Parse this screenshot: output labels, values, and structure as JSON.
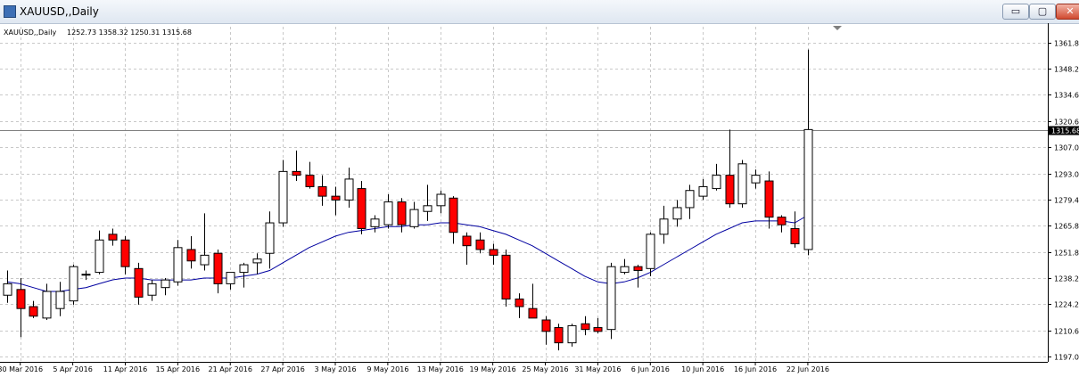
{
  "window": {
    "title": "XAUUSD,,Daily",
    "buttons": {
      "minimize": "▭",
      "maximize": "▢",
      "close": "✕"
    }
  },
  "chart_data": {
    "type": "candlestick",
    "symbol_label": "XAUUSD,,Daily",
    "ohlc_label": "1252.73 1358.32 1250.31 1315.68",
    "last_price": 1315.68,
    "ylim": [
      1194.0,
      1370.0
    ],
    "y_ticks": [
      1197.0,
      1210.6,
      1224.2,
      1238.2,
      1251.8,
      1265.8,
      1279.4,
      1293.0,
      1307.0,
      1320.6,
      1334.6,
      1348.2,
      1361.8
    ],
    "x_labels": [
      {
        "bar": 1,
        "text": "30 Mar 2016"
      },
      {
        "bar": 5,
        "text": "5 Apr 2016"
      },
      {
        "bar": 9,
        "text": "11 Apr 2016"
      },
      {
        "bar": 13,
        "text": "15 Apr 2016"
      },
      {
        "bar": 17,
        "text": "21 Apr 2016"
      },
      {
        "bar": 21,
        "text": "27 Apr 2016"
      },
      {
        "bar": 25,
        "text": "3 May 2016"
      },
      {
        "bar": 29,
        "text": "9 May 2016"
      },
      {
        "bar": 33,
        "text": "13 May 2016"
      },
      {
        "bar": 37,
        "text": "19 May 2016"
      },
      {
        "bar": 41,
        "text": "25 May 2016"
      },
      {
        "bar": 45,
        "text": "31 May 2016"
      },
      {
        "bar": 49,
        "text": "6 Jun 2016"
      },
      {
        "bar": 53,
        "text": "10 Jun 2016"
      },
      {
        "bar": 57,
        "text": "16 Jun 2016"
      },
      {
        "bar": 61,
        "text": "22 Jun 2016"
      }
    ],
    "bars": [
      {
        "o": 1229,
        "h": 1242,
        "l": 1225,
        "c": 1235
      },
      {
        "o": 1232,
        "h": 1238,
        "l": 1207,
        "c": 1222
      },
      {
        "o": 1223,
        "h": 1226,
        "l": 1217,
        "c": 1218
      },
      {
        "o": 1217,
        "h": 1235,
        "l": 1216,
        "c": 1231
      },
      {
        "o": 1222,
        "h": 1236,
        "l": 1218,
        "c": 1231
      },
      {
        "o": 1226,
        "h": 1245,
        "l": 1224,
        "c": 1244
      },
      {
        "o": 1240,
        "h": 1242,
        "l": 1237,
        "c": 1240
      },
      {
        "o": 1241,
        "h": 1263,
        "l": 1240,
        "c": 1258
      },
      {
        "o": 1261,
        "h": 1264,
        "l": 1255,
        "c": 1258
      },
      {
        "o": 1258,
        "h": 1260,
        "l": 1240,
        "c": 1244
      },
      {
        "o": 1243,
        "h": 1246,
        "l": 1224,
        "c": 1228
      },
      {
        "o": 1229,
        "h": 1237,
        "l": 1226,
        "c": 1235
      },
      {
        "o": 1233,
        "h": 1238,
        "l": 1229,
        "c": 1237
      },
      {
        "o": 1236,
        "h": 1258,
        "l": 1234,
        "c": 1254
      },
      {
        "o": 1253,
        "h": 1260,
        "l": 1243,
        "c": 1247
      },
      {
        "o": 1245,
        "h": 1272,
        "l": 1242,
        "c": 1250
      },
      {
        "o": 1251,
        "h": 1253,
        "l": 1230,
        "c": 1235
      },
      {
        "o": 1235,
        "h": 1240,
        "l": 1232,
        "c": 1241
      },
      {
        "o": 1241,
        "h": 1246,
        "l": 1233,
        "c": 1245
      },
      {
        "o": 1246,
        "h": 1251,
        "l": 1240,
        "c": 1248
      },
      {
        "o": 1251,
        "h": 1273,
        "l": 1243,
        "c": 1267
      },
      {
        "o": 1267,
        "h": 1300,
        "l": 1265,
        "c": 1294
      },
      {
        "o": 1294,
        "h": 1305,
        "l": 1289,
        "c": 1292
      },
      {
        "o": 1292,
        "h": 1299,
        "l": 1285,
        "c": 1286
      },
      {
        "o": 1286,
        "h": 1292,
        "l": 1276,
        "c": 1281
      },
      {
        "o": 1281,
        "h": 1286,
        "l": 1271,
        "c": 1279
      },
      {
        "o": 1279,
        "h": 1296,
        "l": 1275,
        "c": 1290
      },
      {
        "o": 1285,
        "h": 1289,
        "l": 1261,
        "c": 1264
      },
      {
        "o": 1265,
        "h": 1271,
        "l": 1262,
        "c": 1269
      },
      {
        "o": 1266,
        "h": 1282,
        "l": 1264,
        "c": 1278
      },
      {
        "o": 1278,
        "h": 1280,
        "l": 1262,
        "c": 1266
      },
      {
        "o": 1265,
        "h": 1278,
        "l": 1264,
        "c": 1274
      },
      {
        "o": 1273,
        "h": 1287,
        "l": 1268,
        "c": 1276
      },
      {
        "o": 1276,
        "h": 1284,
        "l": 1272,
        "c": 1282
      },
      {
        "o": 1280,
        "h": 1281,
        "l": 1256,
        "c": 1262
      },
      {
        "o": 1260,
        "h": 1262,
        "l": 1245,
        "c": 1255
      },
      {
        "o": 1258,
        "h": 1262,
        "l": 1251,
        "c": 1253
      },
      {
        "o": 1253,
        "h": 1256,
        "l": 1245,
        "c": 1250
      },
      {
        "o": 1250,
        "h": 1253,
        "l": 1223,
        "c": 1227
      },
      {
        "o": 1227,
        "h": 1230,
        "l": 1217,
        "c": 1223
      },
      {
        "o": 1222,
        "h": 1235,
        "l": 1217,
        "c": 1217
      },
      {
        "o": 1216,
        "h": 1218,
        "l": 1203,
        "c": 1210
      },
      {
        "o": 1212,
        "h": 1214,
        "l": 1200,
        "c": 1204
      },
      {
        "o": 1204,
        "h": 1214,
        "l": 1202,
        "c": 1213
      },
      {
        "o": 1214,
        "h": 1218,
        "l": 1208,
        "c": 1211
      },
      {
        "o": 1212,
        "h": 1217,
        "l": 1209,
        "c": 1210
      },
      {
        "o": 1211,
        "h": 1246,
        "l": 1206,
        "c": 1244
      },
      {
        "o": 1241,
        "h": 1248,
        "l": 1240,
        "c": 1244
      },
      {
        "o": 1244,
        "h": 1245,
        "l": 1233,
        "c": 1242
      },
      {
        "o": 1243,
        "h": 1262,
        "l": 1239,
        "c": 1261
      },
      {
        "o": 1261,
        "h": 1276,
        "l": 1256,
        "c": 1269
      },
      {
        "o": 1269,
        "h": 1279,
        "l": 1265,
        "c": 1275
      },
      {
        "o": 1275,
        "h": 1287,
        "l": 1269,
        "c": 1284
      },
      {
        "o": 1281,
        "h": 1290,
        "l": 1279,
        "c": 1286
      },
      {
        "o": 1285,
        "h": 1298,
        "l": 1284,
        "c": 1292
      },
      {
        "o": 1292,
        "h": 1316,
        "l": 1275,
        "c": 1277
      },
      {
        "o": 1277,
        "h": 1300,
        "l": 1275,
        "c": 1298
      },
      {
        "o": 1288,
        "h": 1295,
        "l": 1285,
        "c": 1292
      },
      {
        "o": 1289,
        "h": 1294,
        "l": 1264,
        "c": 1270
      },
      {
        "o": 1270,
        "h": 1271,
        "l": 1262,
        "c": 1266
      },
      {
        "o": 1264,
        "h": 1273,
        "l": 1254,
        "c": 1256
      },
      {
        "o": 1253,
        "h": 1358,
        "l": 1250,
        "c": 1316
      }
    ],
    "moving_average": [
      1236,
      1235,
      1233,
      1231,
      1231,
      1232,
      1233,
      1235,
      1237,
      1238,
      1238,
      1237,
      1237,
      1237,
      1237,
      1238,
      1238,
      1238,
      1239,
      1240,
      1242,
      1246,
      1250,
      1254,
      1257,
      1260,
      1262,
      1263,
      1264,
      1265,
      1265,
      1266,
      1266,
      1267,
      1267,
      1266,
      1265,
      1263,
      1261,
      1258,
      1255,
      1251,
      1247,
      1243,
      1239,
      1236,
      1235,
      1236,
      1238,
      1241,
      1245,
      1249,
      1253,
      1257,
      1261,
      1264,
      1267,
      1268,
      1268,
      1268,
      1267,
      1271
    ],
    "colors": {
      "bull_fill": "#ffffff",
      "bear_fill": "#ff0000",
      "outline": "#000000",
      "grid": "#c8c8c8",
      "ma_line": "#0000a0",
      "price_line": "#808080",
      "price_box": "#000000"
    },
    "grid": true
  }
}
